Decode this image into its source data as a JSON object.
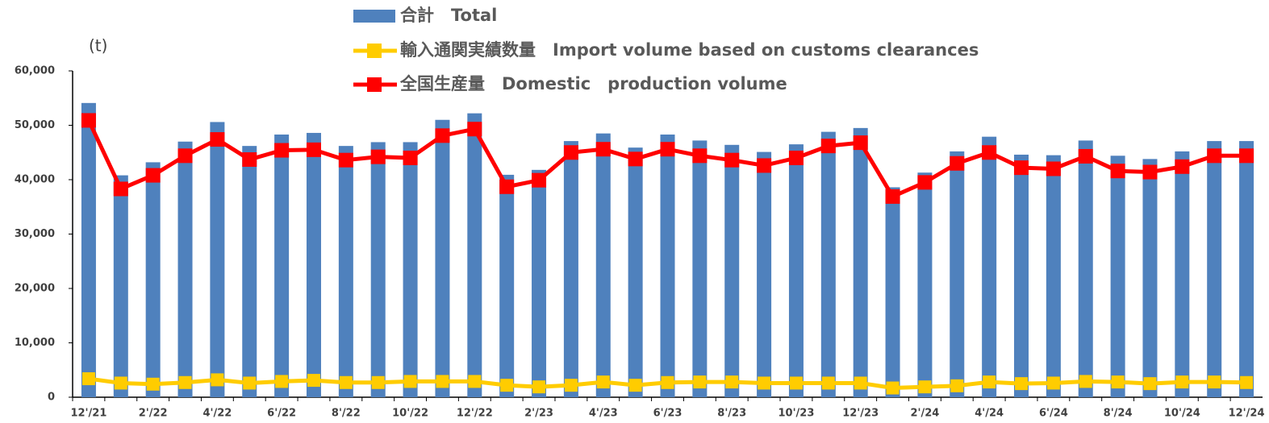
{
  "chart_data": {
    "type": "bar_line",
    "y_label": "(t)",
    "categories": [
      "12'/21",
      null,
      "2'/22",
      null,
      "4'/22",
      null,
      "6'/22",
      null,
      "8'/22",
      null,
      "10'/22",
      null,
      "12'/22",
      null,
      "2'/23",
      null,
      "4'/23",
      null,
      "6'/23",
      null,
      "8'/23",
      null,
      "10'/23",
      null,
      "12'/23",
      null,
      "2'/24",
      null,
      "4'/24",
      null,
      "6'/24",
      null,
      "8'/24",
      null,
      "10'/24",
      null,
      "12'/24"
    ],
    "series": [
      {
        "name": "合計　Total",
        "kind": "bar",
        "color": "#4f81bd",
        "values": [
          54100,
          40800,
          43200,
          47000,
          50600,
          46200,
          48300,
          48600,
          46200,
          46900,
          46900,
          51000,
          52200,
          40900,
          41800,
          47100,
          48500,
          45900,
          48300,
          47200,
          46400,
          45100,
          46500,
          48800,
          49500,
          38600,
          41300,
          45200,
          47900,
          44600,
          44500,
          47200,
          44400,
          43800,
          45200,
          47100,
          47100
        ]
      },
      {
        "name": "輸入通関実績数量　Import volume based on customs clearances",
        "kind": "line",
        "color": "#ffcc00",
        "values": [
          3400,
          2600,
          2400,
          2700,
          3200,
          2600,
          2900,
          3100,
          2700,
          2700,
          2900,
          2900,
          2900,
          2200,
          1900,
          2200,
          2800,
          2200,
          2700,
          2800,
          2800,
          2600,
          2600,
          2600,
          2600,
          1700,
          1900,
          2100,
          2800,
          2500,
          2600,
          2900,
          2800,
          2500,
          2800,
          2800,
          2700
        ]
      },
      {
        "name": "全国生産量　Domestic　production volume",
        "kind": "line",
        "color": "#ff0000",
        "values": [
          50900,
          38300,
          40800,
          44400,
          47400,
          43700,
          45400,
          45500,
          43600,
          44200,
          44000,
          48100,
          49300,
          38700,
          39900,
          45000,
          45600,
          43800,
          45600,
          44400,
          43600,
          42600,
          44000,
          46200,
          46800,
          36900,
          39500,
          43000,
          45000,
          42200,
          42000,
          44300,
          41600,
          41400,
          42400,
          44400,
          44400
        ]
      }
    ],
    "ylim": [
      0,
      60000
    ],
    "yticks": [
      0,
      {
        "value": 10000,
        "label": "10,000"
      },
      {
        "value": 20000,
        "label": "20,000"
      },
      {
        "value": 30000,
        "label": "30,000"
      },
      {
        "value": 40000,
        "label": "40,000"
      },
      {
        "value": 50000,
        "label": "50,000"
      },
      {
        "value": 60000,
        "label": "60,000"
      }
    ],
    "grid": false,
    "legend": "top"
  }
}
